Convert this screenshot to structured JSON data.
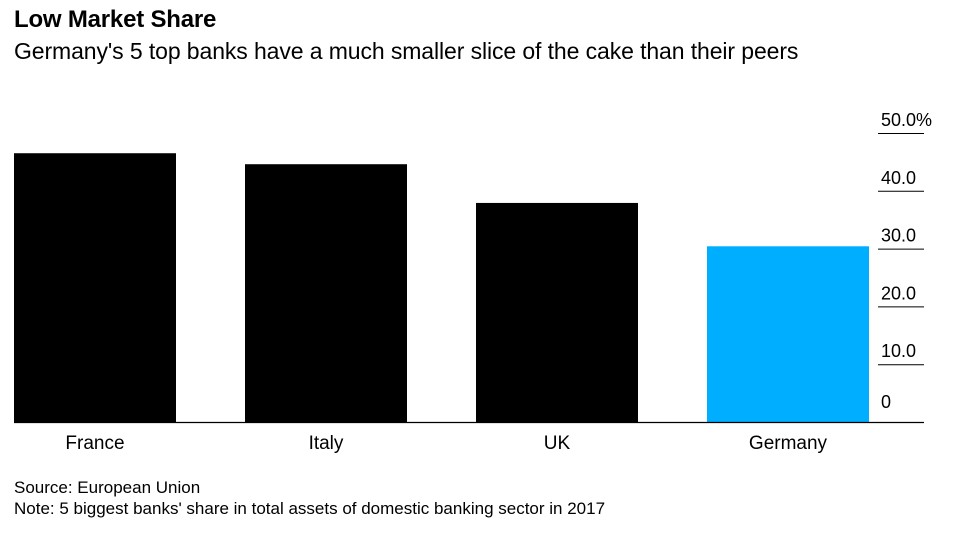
{
  "header": {
    "title": "Low Market Share",
    "subtitle": "Germany's 5 top banks have a much smaller slice of the cake than their peers"
  },
  "footer": {
    "source": "Source: European Union",
    "note": "Note: 5 biggest banks' share in total assets of domestic banking sector in 2017"
  },
  "chart_data": {
    "type": "bar",
    "title": "Low Market Share",
    "subtitle": "Germany's 5 top banks have a much smaller slice of the cake than their peers",
    "categories": [
      "France",
      "Italy",
      "UK",
      "Germany"
    ],
    "values": [
      46.5,
      44.6,
      37.9,
      30.4
    ],
    "colors": [
      "#000000",
      "#000000",
      "#000000",
      "#00aeff"
    ],
    "ylim": [
      0,
      50
    ],
    "yticks": [
      0,
      10,
      20,
      30,
      40,
      50
    ],
    "ytick_labels": [
      "0",
      "10.0",
      "20.0",
      "30.0",
      "40.0",
      "50.0%"
    ],
    "y_axis_side": "right",
    "grid": false
  }
}
